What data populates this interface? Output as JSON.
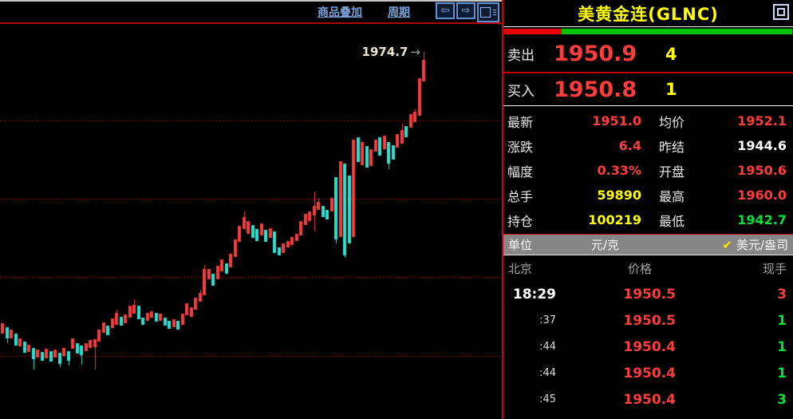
{
  "toolbar": {
    "overlay_label": "商品叠加",
    "period_label": "周期",
    "prev_icon": "⇦",
    "next_icon": "⇨"
  },
  "chart_data": {
    "type": "candlestick",
    "title": "美黄金连(GLNC)",
    "annotation": {
      "text": "1974.7",
      "arrow": "→"
    },
    "ylim": [
      1629.7,
      2001
    ],
    "gridline_prices": [
      1910.6,
      1837.1,
      1763.2,
      1688.9
    ],
    "grid": "horizontal-dotted",
    "legend": "none",
    "xlabel": "",
    "ylabel": "",
    "colors": {
      "up": "#f53d3d",
      "down": "#2fe0d0",
      "grid": "#b40000",
      "background": "#000000"
    },
    "x_start": 1,
    "x_step": 5.5,
    "candle_width": 4,
    "candles": [
      [
        1710.0,
        1719.7,
        1710.0,
        1719.7
      ],
      [
        1716.0,
        1716.0,
        1701.0,
        1705.4
      ],
      [
        1705.4,
        1713.7,
        1705.4,
        1713.7
      ],
      [
        1710.0,
        1710.0,
        1698.7,
        1698.7
      ],
      [
        1698.0,
        1705.4,
        1698.0,
        1705.4
      ],
      [
        1702.4,
        1702.4,
        1692.0,
        1692.0
      ],
      [
        1692.7,
        1699.4,
        1692.7,
        1699.4
      ],
      [
        1696.4,
        1696.4,
        1676.2,
        1686.0
      ],
      [
        1687.4,
        1695.0,
        1687.4,
        1695.0
      ],
      [
        1692.7,
        1692.7,
        1684.4,
        1684.4
      ],
      [
        1686.7,
        1695.7,
        1686.7,
        1695.7
      ],
      [
        1693.4,
        1693.4,
        1683.7,
        1683.7
      ],
      [
        1687.4,
        1695.0,
        1687.4,
        1695.0
      ],
      [
        1692.0,
        1692.0,
        1678.4,
        1681.4
      ],
      [
        1689.0,
        1696.4,
        1689.0,
        1696.4
      ],
      [
        1693.4,
        1693.4,
        1680.0,
        1684.4
      ],
      [
        1695.7,
        1705.4,
        1695.7,
        1705.4
      ],
      [
        1701.0,
        1701.0,
        1691.2,
        1691.2
      ],
      [
        1698.7,
        1698.7,
        1680.7,
        1689.7
      ],
      [
        1693.4,
        1701.0,
        1693.4,
        1701.0
      ],
      [
        1696.4,
        1704.0,
        1696.4,
        1704.0
      ],
      [
        1697.2,
        1704.7,
        1676.2,
        1704.7
      ],
      [
        1702.4,
        1713.7,
        1702.4,
        1713.7
      ],
      [
        1710.7,
        1720.4,
        1710.7,
        1720.4
      ],
      [
        1717.4,
        1717.4,
        1708.4,
        1708.4
      ],
      [
        1715.2,
        1724.2,
        1715.2,
        1724.2
      ],
      [
        1718.2,
        1732.4,
        1718.2,
        1729.4
      ],
      [
        1725.7,
        1725.7,
        1717.4,
        1717.4
      ],
      [
        1719.7,
        1728.0,
        1719.7,
        1728.0
      ],
      [
        1725.0,
        1736.2,
        1725.0,
        1736.2
      ],
      [
        1728.7,
        1742.2,
        1728.7,
        1737.0
      ],
      [
        1736.2,
        1736.2,
        1723.4,
        1723.4
      ],
      [
        1725.0,
        1725.0,
        1718.2,
        1718.2
      ],
      [
        1722.0,
        1729.4,
        1722.0,
        1729.4
      ],
      [
        1725.0,
        1731.0,
        1725.0,
        1731.0
      ],
      [
        1729.4,
        1729.4,
        1721.2,
        1721.2
      ],
      [
        1722.0,
        1728.7,
        1722.0,
        1728.7
      ],
      [
        1725.0,
        1725.0,
        1717.4,
        1717.4
      ],
      [
        1722.0,
        1722.0,
        1714.4,
        1714.4
      ],
      [
        1716.0,
        1723.4,
        1716.0,
        1723.4
      ],
      [
        1722.0,
        1722.0,
        1713.7,
        1713.7
      ],
      [
        1718.2,
        1728.7,
        1718.2,
        1728.7
      ],
      [
        1727.2,
        1738.4,
        1727.2,
        1738.4
      ],
      [
        1725.7,
        1734.7,
        1725.7,
        1734.7
      ],
      [
        1732.4,
        1743.7,
        1732.4,
        1743.7
      ],
      [
        1740.0,
        1751.2,
        1740.0,
        1748.2
      ],
      [
        1746.0,
        1774.4,
        1746.0,
        1770.7
      ],
      [
        1761.0,
        1770.7,
        1761.0,
        1770.7
      ],
      [
        1766.2,
        1766.2,
        1755.0,
        1755.0
      ],
      [
        1761.0,
        1773.7,
        1761.0,
        1773.7
      ],
      [
        1768.4,
        1779.7,
        1768.4,
        1779.7
      ],
      [
        1776.0,
        1776.0,
        1766.2,
        1766.2
      ],
      [
        1772.2,
        1785.0,
        1772.2,
        1785.0
      ],
      [
        1782.0,
        1798.4,
        1782.0,
        1798.4
      ],
      [
        1796.2,
        1811.2,
        1796.2,
        1811.2
      ],
      [
        1808.2,
        1824.7,
        1808.2,
        1819.4
      ],
      [
        1803.7,
        1815.7,
        1803.7,
        1815.7
      ],
      [
        1812.0,
        1812.0,
        1800.0,
        1800.0
      ],
      [
        1808.2,
        1808.2,
        1797.0,
        1797.0
      ],
      [
        1802.2,
        1813.4,
        1802.2,
        1813.4
      ],
      [
        1807.4,
        1807.4,
        1796.2,
        1796.2
      ],
      [
        1800.0,
        1809.0,
        1800.0,
        1809.0
      ],
      [
        1806.0,
        1806.0,
        1785.7,
        1785.7
      ],
      [
        1791.0,
        1791.0,
        1783.4,
        1783.4
      ],
      [
        1785.7,
        1794.7,
        1785.7,
        1794.7
      ],
      [
        1791.0,
        1797.0,
        1791.0,
        1797.0
      ],
      [
        1793.2,
        1800.7,
        1793.2,
        1800.7
      ],
      [
        1797.0,
        1803.7,
        1797.0,
        1803.7
      ],
      [
        1802.2,
        1815.7,
        1802.2,
        1815.7
      ],
      [
        1812.0,
        1822.4,
        1812.0,
        1822.4
      ],
      [
        1815.7,
        1824.7,
        1815.7,
        1824.7
      ],
      [
        1821.0,
        1843.4,
        1806.0,
        1830.0
      ],
      [
        1826.2,
        1837.4,
        1826.2,
        1833.7
      ],
      [
        1830.0,
        1830.0,
        1819.4,
        1819.4
      ],
      [
        1826.2,
        1826.2,
        1817.2,
        1817.2
      ],
      [
        1824.7,
        1837.4,
        1824.7,
        1837.4
      ],
      [
        1857.0,
        1857.0,
        1794.7,
        1798.4
      ],
      [
        1800.7,
        1872.0,
        1800.7,
        1872.0
      ],
      [
        1869.7,
        1869.7,
        1781.2,
        1783.4
      ],
      [
        1858.4,
        1858.4,
        1794.7,
        1794.7
      ],
      [
        1800.7,
        1892.2,
        1800.7,
        1892.2
      ],
      [
        1894.4,
        1894.4,
        1871.2,
        1871.2
      ],
      [
        1868.2,
        1890.0,
        1868.2,
        1890.0
      ],
      [
        1886.2,
        1886.2,
        1866.0,
        1866.0
      ],
      [
        1867.4,
        1883.2,
        1867.4,
        1883.2
      ],
      [
        1881.0,
        1892.2,
        1881.0,
        1892.2
      ],
      [
        1894.4,
        1894.4,
        1877.2,
        1877.2
      ],
      [
        1883.2,
        1896.0,
        1883.2,
        1896.0
      ],
      [
        1890.0,
        1890.0,
        1864.4,
        1869.7
      ],
      [
        1887.0,
        1887.0,
        1873.4,
        1873.4
      ],
      [
        1884.7,
        1897.4,
        1884.7,
        1897.4
      ],
      [
        1888.4,
        1907.2,
        1888.4,
        1901.2
      ],
      [
        1905.0,
        1905.0,
        1894.4,
        1894.4
      ],
      [
        1903.4,
        1916.2,
        1903.4,
        1916.2
      ],
      [
        1908.7,
        1920.7,
        1908.7,
        1918.4
      ],
      [
        1914.7,
        1950.0,
        1914.7,
        1950.0
      ],
      [
        1947.0,
        1974.7,
        1947.0,
        1967.2
      ]
    ]
  },
  "quote": {
    "title": "美黄金连(GLNC)",
    "strength_bar": {
      "red_pct": 20,
      "green_pct": 80
    },
    "ask": {
      "label": "卖出",
      "price": "1950.9",
      "qty": "4"
    },
    "bid": {
      "label": "买入",
      "price": "1950.8",
      "qty": "1"
    },
    "stats": [
      {
        "label": "最新",
        "value": "1951.0",
        "color": "red"
      },
      {
        "label": "均价",
        "value": "1952.1",
        "color": "red"
      },
      {
        "label": "涨跌",
        "value": "6.4",
        "color": "red"
      },
      {
        "label": "昨结",
        "value": "1944.6",
        "color": "white"
      },
      {
        "label": "幅度",
        "value": "0.33%",
        "color": "red"
      },
      {
        "label": "开盘",
        "value": "1950.6",
        "color": "red"
      },
      {
        "label": "总手",
        "value": "59890",
        "color": "yellow"
      },
      {
        "label": "最高",
        "value": "1960.0",
        "color": "red"
      },
      {
        "label": "持仓",
        "value": "100219",
        "color": "yellow"
      },
      {
        "label": "最低",
        "value": "1942.7",
        "color": "green"
      }
    ],
    "unit_row": {
      "label": "单位",
      "unit1": "元/克",
      "check": "✔",
      "unit2": "美元/盎司"
    },
    "tick_header": {
      "col1": "北京",
      "col2": "价格",
      "col3": "现手"
    },
    "ticks": [
      {
        "time": "18:29",
        "price": "1950.5",
        "vol": "3",
        "vol_color": "red"
      },
      {
        "time": ":37",
        "price": "1950.5",
        "vol": "1",
        "vol_color": "green"
      },
      {
        "time": ":44",
        "price": "1950.4",
        "vol": "1",
        "vol_color": "green"
      },
      {
        "time": ":44",
        "price": "1950.4",
        "vol": "1",
        "vol_color": "green"
      },
      {
        "time": ":45",
        "price": "1950.4",
        "vol": "3",
        "vol_color": "green"
      }
    ]
  }
}
